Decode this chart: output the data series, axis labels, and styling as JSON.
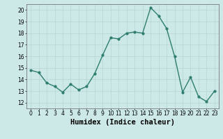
{
  "x": [
    0,
    1,
    2,
    3,
    4,
    5,
    6,
    7,
    8,
    9,
    10,
    11,
    12,
    13,
    14,
    15,
    16,
    17,
    18,
    19,
    20,
    21,
    22,
    23
  ],
  "y": [
    14.8,
    14.6,
    13.7,
    13.4,
    12.9,
    13.6,
    13.1,
    13.4,
    14.5,
    16.1,
    17.6,
    17.5,
    18.0,
    18.1,
    18.0,
    20.2,
    19.5,
    18.4,
    16.0,
    12.9,
    14.2,
    12.5,
    12.1,
    13.0
  ],
  "line_color": "#2e7d6e",
  "marker": "o",
  "marker_size": 2.0,
  "line_width": 1.0,
  "bg_color": "#cce9e7",
  "grid_color": "#b8d8d6",
  "xlabel": "Humidex (Indice chaleur)",
  "xlim": [
    -0.5,
    23.5
  ],
  "ylim": [
    11.5,
    20.5
  ],
  "yticks": [
    12,
    13,
    14,
    15,
    16,
    17,
    18,
    19,
    20
  ],
  "xticks": [
    0,
    1,
    2,
    3,
    4,
    5,
    6,
    7,
    8,
    9,
    10,
    11,
    12,
    13,
    14,
    15,
    16,
    17,
    18,
    19,
    20,
    21,
    22,
    23
  ],
  "tick_fontsize": 5.5,
  "xlabel_fontsize": 7.5
}
